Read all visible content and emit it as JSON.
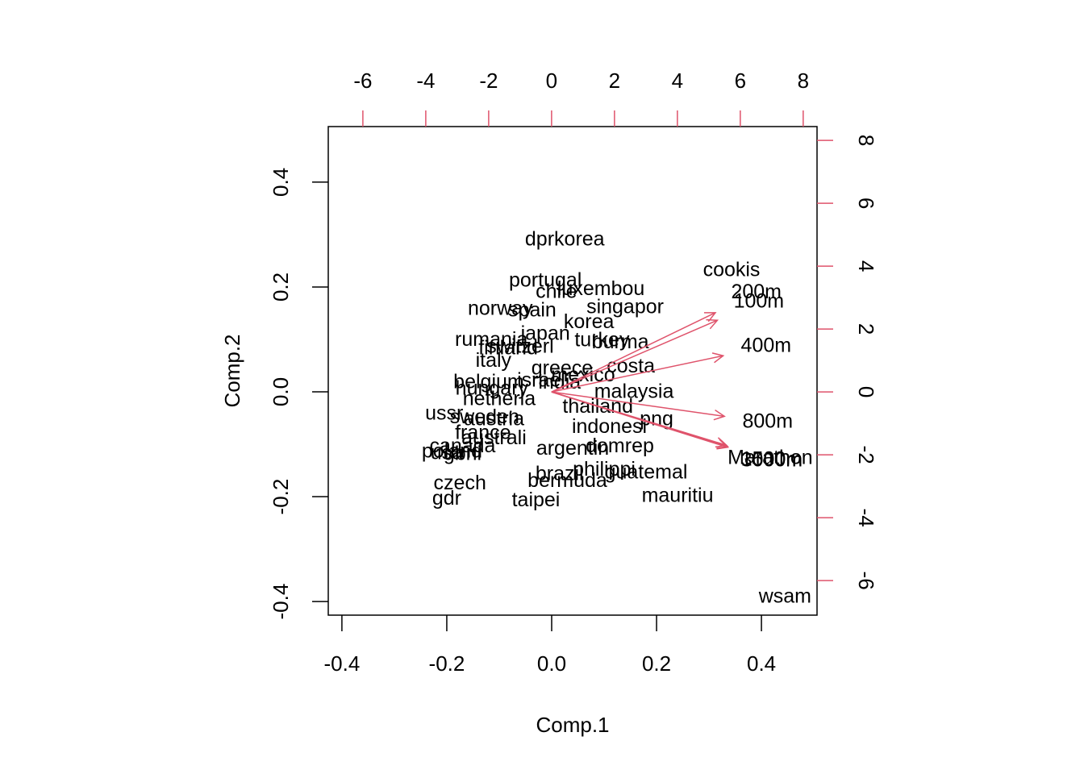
{
  "chart_data": {
    "type": "biplot",
    "xlabel": "Comp.1",
    "ylabel": "Comp.2",
    "xlim": [
      -0.426,
      0.506
    ],
    "ylim": [
      -0.426,
      0.506
    ],
    "xticks": [
      -0.4,
      -0.2,
      {
        "value": 0,
        "label": "0.0"
      },
      0.2,
      0.4
    ],
    "yticks": [
      -0.4,
      -0.2,
      {
        "value": 0,
        "label": "0.0"
      },
      0.2,
      0.4
    ],
    "x2lim": [
      -7.1,
      8.44
    ],
    "y2lim": [
      -7.1,
      8.44
    ],
    "x2ticks": [
      -6,
      -4,
      -2,
      0,
      2,
      4,
      6,
      8
    ],
    "y2ticks": [
      -6,
      -4,
      -2,
      0,
      2,
      4,
      6,
      8
    ],
    "points": {
      "color": "#000000",
      "labels": [
        "dprkorea",
        "cookis",
        "portugal",
        "luxembou",
        "chile",
        "norway",
        "spain",
        "singapor",
        "korea",
        "japan",
        "rumania",
        "turkey",
        "burma",
        "finland",
        "switzerl",
        "italy",
        "greece",
        "costa",
        "belgium",
        "hungary",
        "india",
        "israel",
        "mexico",
        "malaysia",
        "netherla",
        "thailand",
        "png",
        "ussr",
        "sweden",
        "austria",
        "indonesi",
        "france",
        "australi",
        "domrep",
        "argentin",
        "canada",
        "poland",
        "usa",
        "gbni",
        "philippi",
        "guatemal",
        "brazil",
        "bermuda",
        "czech",
        "mauritiu",
        "gdr",
        "taipei",
        "wsam"
      ],
      "x": [
        0.025,
        0.343,
        -0.012,
        0.094,
        0.009,
        -0.098,
        -0.037,
        0.14,
        0.071,
        -0.012,
        -0.115,
        0.096,
        0.131,
        -0.083,
        -0.06,
        -0.111,
        0.02,
        0.151,
        -0.12,
        -0.114,
        0.015,
        -0.02,
        0.06,
        0.157,
        -0.1,
        0.088,
        0.2,
        -0.205,
        -0.128,
        -0.11,
        0.11,
        -0.131,
        -0.11,
        0.13,
        0.04,
        -0.17,
        -0.19,
        -0.2,
        -0.17,
        0.1,
        0.18,
        0.015,
        0.03,
        -0.175,
        0.24,
        -0.2,
        -0.03,
        0.445
      ],
      "y": [
        0.289,
        0.231,
        0.211,
        0.195,
        0.189,
        0.157,
        0.154,
        0.16,
        0.132,
        0.109,
        0.098,
        0.097,
        0.093,
        0.082,
        0.085,
        0.058,
        0.043,
        0.047,
        0.017,
        0.005,
        0.016,
        0.02,
        0.03,
        -0.001,
        -0.015,
        -0.03,
        -0.054,
        -0.043,
        -0.05,
        -0.054,
        -0.068,
        -0.08,
        -0.09,
        -0.105,
        -0.11,
        -0.105,
        -0.115,
        -0.118,
        -0.12,
        -0.15,
        -0.155,
        -0.158,
        -0.171,
        -0.176,
        -0.2,
        -0.205,
        -0.208,
        -0.392
      ]
    },
    "loadings": {
      "color": "#DF536B",
      "labels": [
        "100m",
        "200m",
        "400m",
        "800m",
        "1500m",
        "3000m",
        "Marathon"
      ],
      "x": [
        6.59,
        6.51,
        6.82,
        6.87,
        7.0,
        7.0,
        6.95
      ],
      "y": [
        2.85,
        3.15,
        1.44,
        -0.97,
        -2.17,
        -2.2,
        -2.12
      ]
    }
  }
}
